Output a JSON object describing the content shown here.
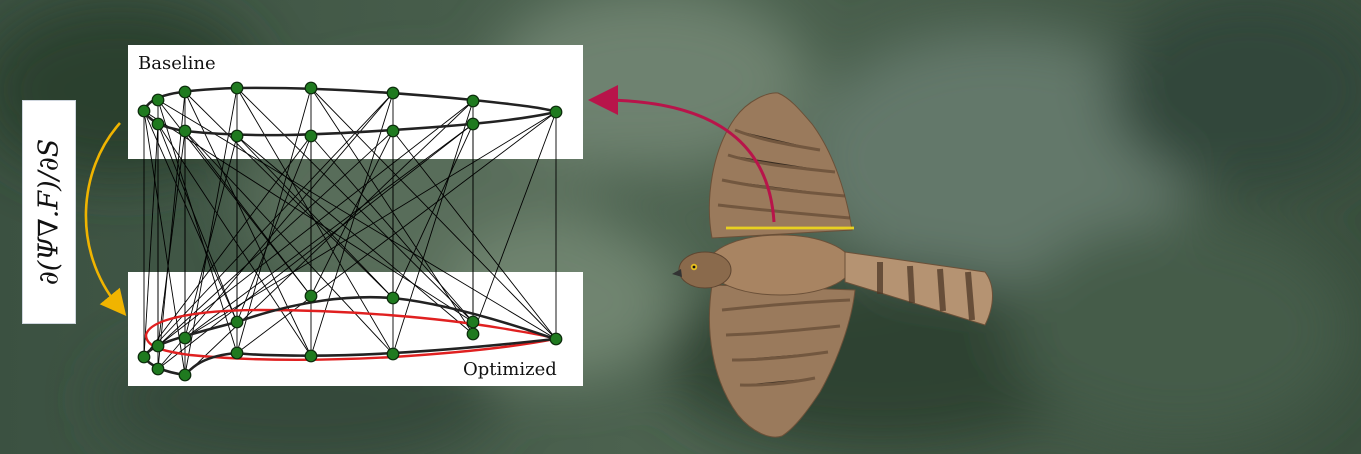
{
  "labels": {
    "baseline": "Baseline",
    "optimized": "Optimized",
    "formula": "∂(Ψ∇.F)/∂S"
  },
  "colors": {
    "background": "#3e5540",
    "node_fill": "#1f7a1f",
    "baseline_curve": "#222222",
    "optimized_curve": "#e02020",
    "derivative_arrow": "#f0b400",
    "hawk_arrow": "#b8144a",
    "chord_line": "#e8d020"
  },
  "icons": {
    "hawk": "hawk-in-flight-icon"
  }
}
